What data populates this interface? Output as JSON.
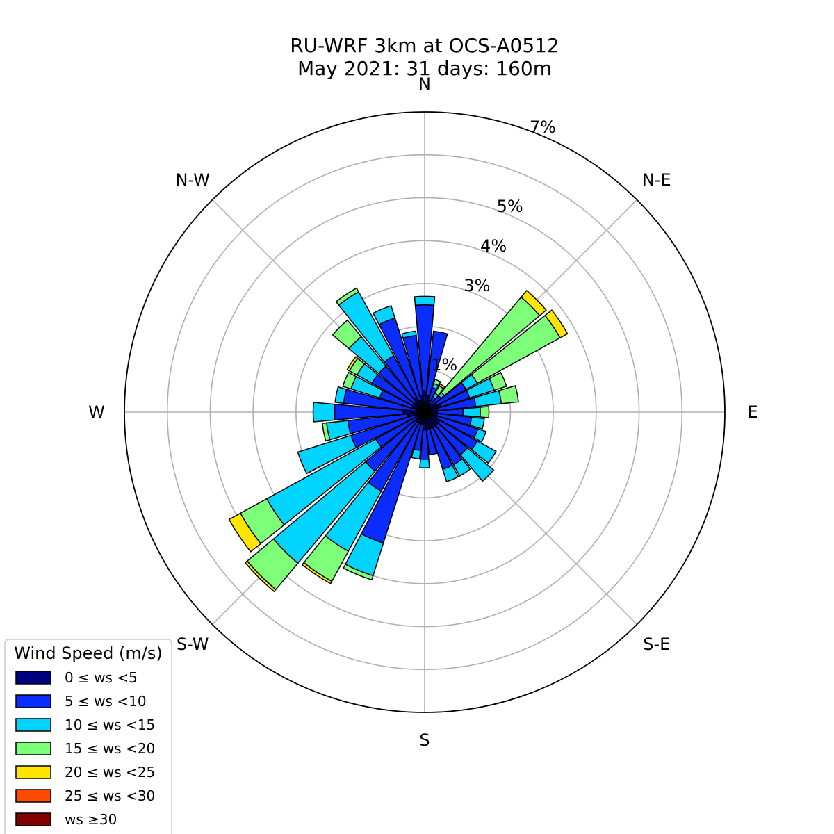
{
  "title_line1": "RU-WRF 3km at OCS-A0512",
  "title_line2": "May 2021: 31 days: 160m",
  "chart_data": {
    "type": "windrose",
    "title": "RU-WRF 3km at OCS-A0512\nMay 2021: 31 days: 160m",
    "directions": [
      "N",
      "N-E",
      "E",
      "S-E",
      "S",
      "S-W",
      "W",
      "N-W"
    ],
    "radial_ticks": [
      "1%",
      "3%",
      "4%",
      "5%",
      "7%"
    ],
    "rmax": 7,
    "grid": true,
    "legend_position": "bottom-left",
    "legend": {
      "title": "Wind Speed (m/s)",
      "items": [
        {
          "label": "0 ≤  ws <5",
          "color": "#000080"
        },
        {
          "label": "5 ≤  ws <10",
          "color": "#0a2cff"
        },
        {
          "label": "10 ≤  ws <15",
          "color": "#00d4ff"
        },
        {
          "label": "15 ≤  ws <20",
          "color": "#7dff7a"
        },
        {
          "label": "20 ≤  ws <25",
          "color": "#ffe500"
        },
        {
          "label": "25 ≤  ws <30",
          "color": "#ff4a00"
        },
        {
          "label": "ws ≥30",
          "color": "#800000"
        }
      ]
    },
    "sectors": [
      {
        "bearing": 0,
        "values": [
          0.5,
          2.0,
          0.2,
          0.0,
          0.0,
          0.0,
          0.0
        ]
      },
      {
        "bearing": 11.25,
        "values": [
          0.4,
          1.5,
          0.0,
          0.0,
          0.0,
          0.0,
          0.0
        ]
      },
      {
        "bearing": 22.5,
        "values": [
          0.3,
          0.3,
          0.1,
          0.1,
          0.0,
          0.0,
          0.0
        ]
      },
      {
        "bearing": 33.75,
        "values": [
          0.2,
          0.2,
          0.1,
          0.2,
          0.05,
          0.0,
          0.0
        ]
      },
      {
        "bearing": 45,
        "values": [
          0.2,
          0.3,
          0.1,
          2.9,
          0.2,
          0.0,
          0.0
        ]
      },
      {
        "bearing": 56.25,
        "values": [
          0.3,
          0.8,
          0.3,
          2.2,
          0.2,
          0.0,
          0.0
        ]
      },
      {
        "bearing": 67.5,
        "values": [
          0.4,
          0.7,
          0.6,
          0.3,
          0.0,
          0.0,
          0.0
        ]
      },
      {
        "bearing": 78.75,
        "values": [
          0.3,
          0.9,
          0.6,
          0.4,
          0.0,
          0.0,
          0.0
        ]
      },
      {
        "bearing": 90,
        "values": [
          0.3,
          0.6,
          0.4,
          0.2,
          0.0,
          0.0,
          0.0
        ]
      },
      {
        "bearing": 101.25,
        "values": [
          0.3,
          0.8,
          0.3,
          0.0,
          0.0,
          0.0,
          0.0
        ]
      },
      {
        "bearing": 112.5,
        "values": [
          0.3,
          1.0,
          0.2,
          0.0,
          0.0,
          0.0,
          0.0
        ]
      },
      {
        "bearing": 123.75,
        "values": [
          0.4,
          1.0,
          0.5,
          0.0,
          0.0,
          0.0,
          0.0
        ]
      },
      {
        "bearing": 135,
        "values": [
          0.4,
          0.9,
          0.8,
          0.0,
          0.0,
          0.0,
          0.0
        ]
      },
      {
        "bearing": 146.25,
        "values": [
          0.4,
          1.0,
          0.3,
          0.0,
          0.0,
          0.0,
          0.0
        ]
      },
      {
        "bearing": 157.5,
        "values": [
          0.4,
          1.0,
          0.3,
          0.0,
          0.0,
          0.0,
          0.0
        ]
      },
      {
        "bearing": 168.75,
        "values": [
          0.4,
          0.6,
          0.0,
          0.0,
          0.0,
          0.0,
          0.0
        ]
      },
      {
        "bearing": 180,
        "values": [
          0.4,
          0.7,
          0.2,
          0.0,
          0.0,
          0.0,
          0.0
        ]
      },
      {
        "bearing": 191.25,
        "values": [
          0.3,
          0.6,
          0.2,
          0.0,
          0.0,
          0.0,
          0.0
        ]
      },
      {
        "bearing": 202.5,
        "values": [
          0.3,
          2.9,
          0.8,
          0.1,
          0.0,
          0.0,
          0.0
        ]
      },
      {
        "bearing": 213.75,
        "values": [
          0.3,
          1.8,
          1.6,
          0.8,
          0.06,
          0.0,
          0.0
        ]
      },
      {
        "bearing": 225,
        "values": [
          0.3,
          1.5,
          2.8,
          0.8,
          0.06,
          0.0,
          0.0
        ]
      },
      {
        "bearing": 236.25,
        "values": [
          0.2,
          1.1,
          2.9,
          0.7,
          0.3,
          0.0,
          0.0
        ]
      },
      {
        "bearing": 247.5,
        "values": [
          0.2,
          1.6,
          1.3,
          0.0,
          0.0,
          0.0,
          0.0
        ]
      },
      {
        "bearing": 258.75,
        "values": [
          0.4,
          1.4,
          0.5,
          0.1,
          0.0,
          0.0,
          0.0
        ]
      },
      {
        "bearing": 270,
        "values": [
          0.5,
          1.6,
          0.5,
          0.0,
          0.0,
          0.0,
          0.0
        ]
      },
      {
        "bearing": 281.25,
        "values": [
          0.2,
          1.7,
          0.2,
          0.0,
          0.0,
          0.0,
          0.0
        ]
      },
      {
        "bearing": 292.5,
        "values": [
          0.3,
          0.8,
          0.7,
          0.2,
          0.0,
          0.0,
          0.0
        ]
      },
      {
        "bearing": 303.75,
        "values": [
          0.3,
          1.1,
          0.4,
          0.2,
          0.06,
          0.0,
          0.0
        ]
      },
      {
        "bearing": 315,
        "values": [
          0.3,
          1.1,
          0.9,
          0.5,
          0.0,
          0.0,
          0.0
        ]
      },
      {
        "bearing": 326.25,
        "values": [
          0.4,
          1.1,
          1.7,
          0.1,
          0.0,
          0.0,
          0.0
        ]
      },
      {
        "bearing": 337.5,
        "values": [
          0.3,
          2.0,
          0.3,
          0.0,
          0.0,
          0.0,
          0.0
        ]
      },
      {
        "bearing": 348.75,
        "values": [
          0.4,
          1.4,
          0.1,
          0.0,
          0.0,
          0.0,
          0.0
        ]
      }
    ]
  }
}
